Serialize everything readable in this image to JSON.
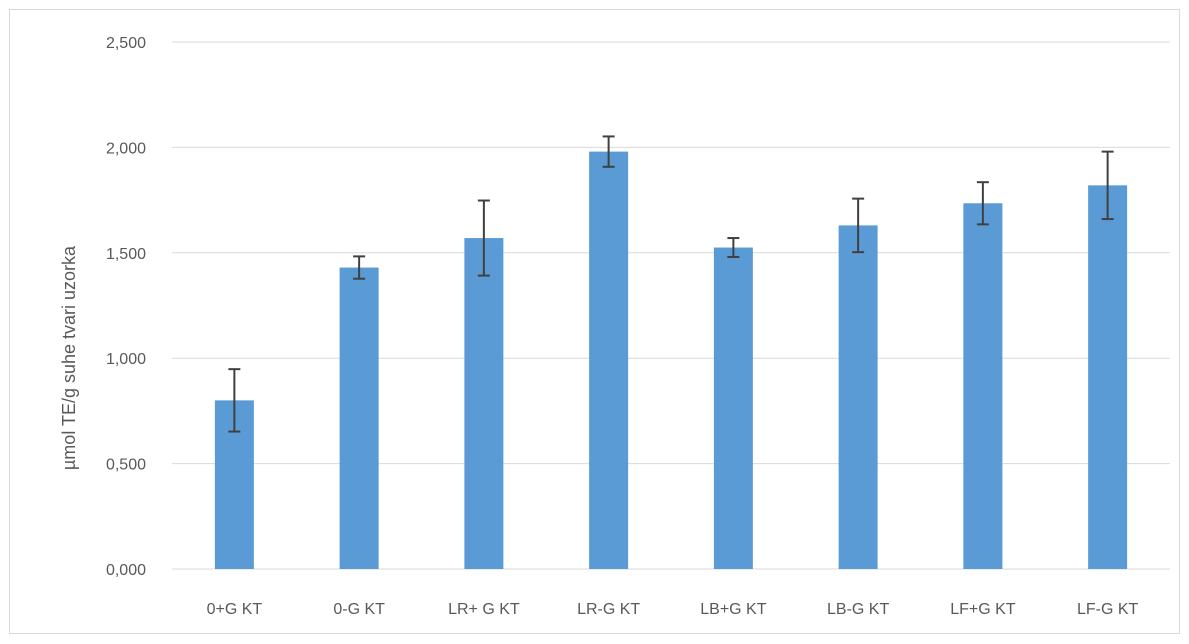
{
  "chart_data": {
    "type": "bar",
    "title": "",
    "xlabel": "",
    "ylabel": "µmol TE/g suhe tvari uzorka",
    "ylim": [
      0,
      2.5
    ],
    "yticks": [
      0,
      0.5,
      1.0,
      1.5,
      2.0,
      2.5
    ],
    "ytick_labels": [
      "0,000",
      "0,500",
      "1,000",
      "1,500",
      "2,000",
      "2,500"
    ],
    "grid": true,
    "legend": "none",
    "categories": [
      "0+G KT",
      "0-G KT",
      "LR+ G KT",
      "LR-G KT",
      "LB+G KT",
      "LB-G KT",
      "LF+G KT",
      "LF-G KT"
    ],
    "series": [
      {
        "values": [
          0.8,
          1.43,
          1.57,
          1.98,
          1.525,
          1.63,
          1.735,
          1.82
        ],
        "error": [
          0.148,
          0.053,
          0.178,
          0.072,
          0.045,
          0.127,
          0.1,
          0.16
        ],
        "color": "#5b9bd5"
      }
    ],
    "colors": {
      "bar": "#5b9bd5",
      "gridline": "#d9d9d9",
      "errorbar": "#404040",
      "text": "#595959"
    }
  }
}
